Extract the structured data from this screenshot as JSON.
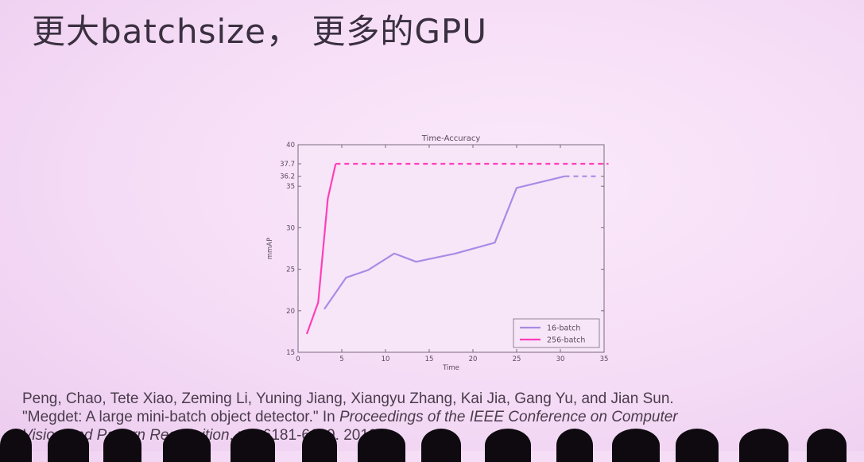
{
  "slide": {
    "title": "更大batchsize， 更多的GPU"
  },
  "chart_data": {
    "type": "line",
    "title": "Time-Accuracy",
    "xlabel": "Time",
    "ylabel": "mmAP",
    "xlim": [
      0,
      35
    ],
    "ylim": [
      15,
      40
    ],
    "xticks": [
      "0",
      "5",
      "10",
      "15",
      "20",
      "25",
      "30",
      "35"
    ],
    "xtick_values": [
      0,
      5,
      10,
      15,
      20,
      25,
      30,
      35
    ],
    "yticks": [
      "15",
      "20",
      "25",
      "30",
      "35",
      "36.2",
      "37.7",
      "40"
    ],
    "ytick_values": [
      15,
      20,
      25,
      30,
      35,
      36.2,
      37.7,
      40
    ],
    "legend_position": "lower-right",
    "series": [
      {
        "name": "16-batch",
        "color": "#a78ce6",
        "x": [
          3,
          5.5,
          8,
          11,
          13.5,
          18,
          22.5,
          25,
          30.5
        ],
        "y": [
          20.2,
          24,
          24.9,
          26.9,
          25.9,
          26.9,
          28.2,
          34.8,
          36.2
        ],
        "extension": {
          "x": [
            30.5,
            34.5
          ],
          "y": [
            36.2,
            36.2
          ],
          "style": "dashed"
        }
      },
      {
        "name": "256-batch",
        "color": "#ff3fb8",
        "x": [
          1,
          2.3,
          3.4,
          4.3
        ],
        "y": [
          17.2,
          21,
          33.5,
          37.7
        ],
        "extension": {
          "x": [
            4.3,
            35.5
          ],
          "y": [
            37.7,
            37.7
          ],
          "style": "dashed"
        }
      }
    ]
  },
  "citation": {
    "line1": "Peng, Chao, Tete Xiao, Zeming Li, Yuning Jiang, Xiangyu Zhang, Kai Jia, Gang Yu, and Jian Sun.",
    "line2_a": "\"Megdet: A large mini-batch object detector.\" In ",
    "line2_b": "Proceedings of the IEEE Conference on Computer",
    "line3_a": "Vision and Pattern Recognition",
    "line3_b": ", pp. 6181-6189. 2018."
  }
}
